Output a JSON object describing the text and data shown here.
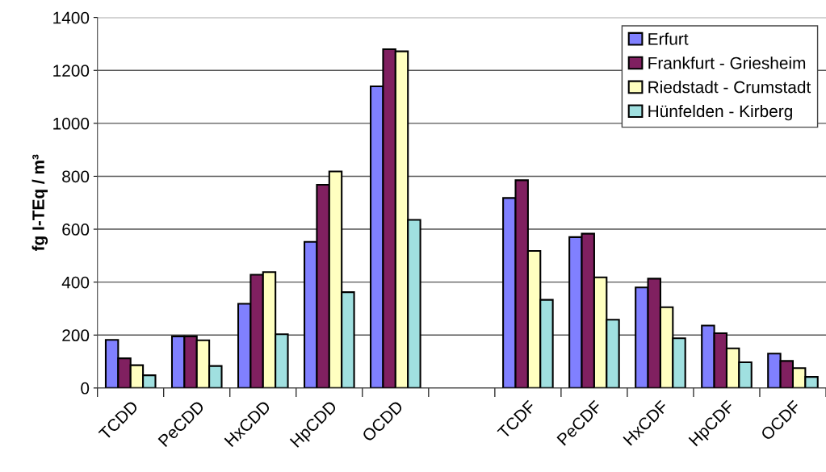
{
  "chart_data": {
    "type": "bar",
    "ylabel": "fg I-TEq / m³",
    "categories": [
      "TCDD",
      "PeCDD",
      "HxCDD",
      "HpCDD",
      "OCDD",
      null,
      "TCDF",
      "PeCDF",
      "HxCDF",
      "HpCDF",
      "OCDF"
    ],
    "series": [
      {
        "name": "Erfurt",
        "color": "#8080ff",
        "values": [
          182,
          195,
          318,
          552,
          1140,
          null,
          718,
          570,
          380,
          236,
          130
        ]
      },
      {
        "name": "Frankfurt - Griesheim",
        "color": "#802060",
        "values": [
          112,
          195,
          428,
          768,
          1280,
          null,
          785,
          583,
          413,
          207,
          102
        ]
      },
      {
        "name": "Riedstadt - Crumstadt",
        "color": "#ffffc0",
        "values": [
          86,
          180,
          438,
          818,
          1272,
          null,
          518,
          418,
          305,
          150,
          75
        ]
      },
      {
        "name": "Hünfelden - Kirberg",
        "color": "#a0e0e0",
        "values": [
          48,
          83,
          203,
          362,
          635,
          null,
          333,
          258,
          188,
          97,
          42
        ]
      }
    ],
    "ylim": [
      0,
      1400
    ],
    "yticks": [
      0,
      200,
      400,
      600,
      800,
      1000,
      1200,
      1400
    ],
    "grid": "y",
    "legend": "top right"
  }
}
